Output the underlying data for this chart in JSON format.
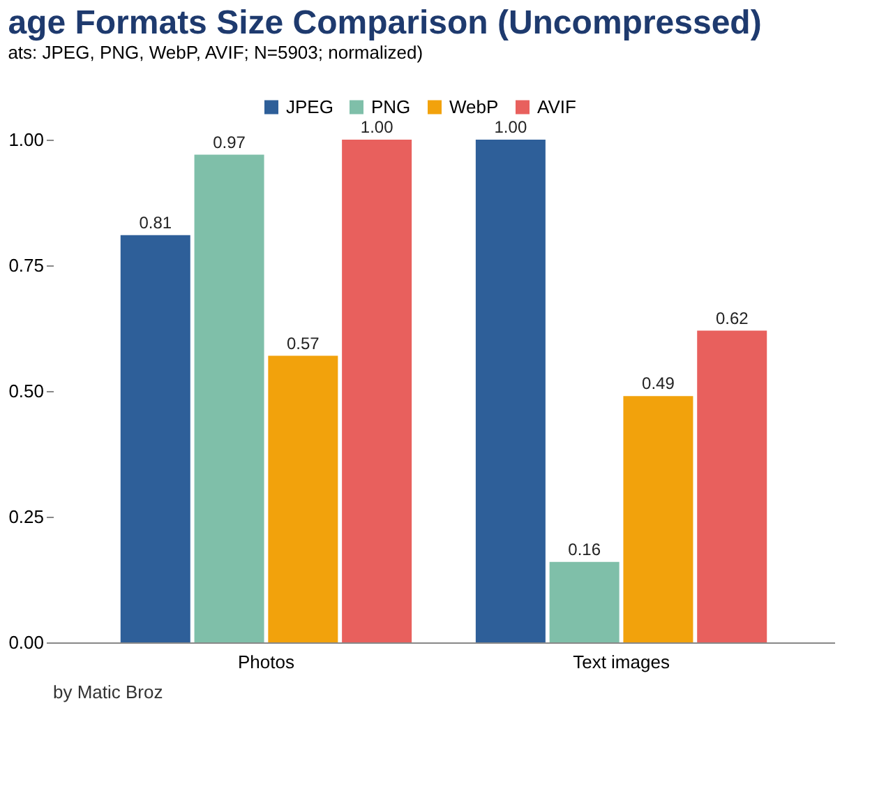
{
  "chart_data": {
    "type": "bar",
    "title": "age Formats Size Comparison (Uncompressed)",
    "subtitle": "ats: JPEG, PNG, WebP, AVIF; N=5903; normalized)",
    "categories": [
      "Photos",
      "Text images"
    ],
    "series": [
      {
        "name": "JPEG",
        "color": "#2e5f99",
        "values": [
          0.81,
          1.0
        ],
        "value_labels": [
          "0.81",
          "1.00"
        ]
      },
      {
        "name": "PNG",
        "color": "#7fbfa9",
        "values": [
          0.97,
          0.16
        ],
        "value_labels": [
          "0.97",
          "0.16"
        ]
      },
      {
        "name": "WebP",
        "color": "#f2a20c",
        "values": [
          0.57,
          0.49
        ],
        "value_labels": [
          "0.57",
          "0.49"
        ]
      },
      {
        "name": "AVIF",
        "color": "#e8605d",
        "values": [
          1.0,
          0.62
        ],
        "value_labels": [
          "1.00",
          "0.62"
        ]
      }
    ],
    "ylim": [
      0,
      1
    ],
    "yticks": [
      {
        "value": 0,
        "label": "0.00"
      },
      {
        "value": 0.25,
        "label": "0.25"
      },
      {
        "value": 0.5,
        "label": "0.50"
      },
      {
        "value": 0.75,
        "label": "0.75"
      },
      {
        "value": 1,
        "label": "1.00"
      }
    ],
    "legend": "top",
    "grid": false,
    "annotations": [
      "by Matic Broz"
    ]
  }
}
